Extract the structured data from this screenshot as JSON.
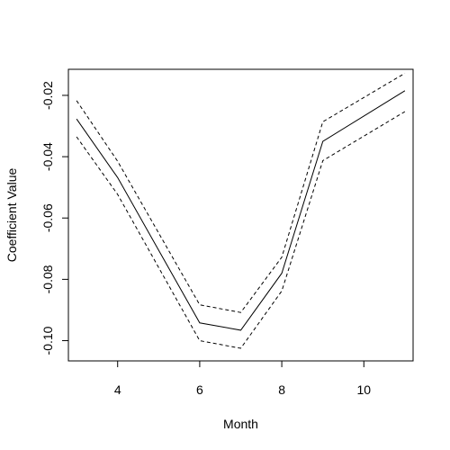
{
  "chart_data": {
    "type": "line",
    "title": "",
    "xlabel": "Month",
    "ylabel": "Coefficient Value",
    "xlim": [
      2.8,
      11.2
    ],
    "ylim": [
      -0.1066,
      -0.0115
    ],
    "x_ticks": [
      4,
      6,
      8,
      10
    ],
    "x_tick_labels": [
      "4",
      "6",
      "8",
      "10"
    ],
    "y_ticks": [
      -0.1,
      -0.08,
      -0.06,
      -0.04,
      -0.02
    ],
    "y_tick_labels": [
      "-0.10",
      "-0.08",
      "-0.06",
      "-0.04",
      "-0.02"
    ],
    "grid": false,
    "legend": "none",
    "x": [
      3,
      4,
      6,
      7,
      8,
      9,
      11
    ],
    "series": [
      {
        "style": "solid",
        "values": [
          -0.0277,
          -0.0468,
          -0.0942,
          -0.0966,
          -0.078,
          -0.035,
          -0.0185
        ]
      },
      {
        "style": "dashed",
        "values": [
          -0.0217,
          -0.0415,
          -0.0883,
          -0.0908,
          -0.0728,
          -0.0286,
          -0.0128
        ]
      },
      {
        "style": "dashed",
        "values": [
          -0.0335,
          -0.0523,
          -0.1,
          -0.1025,
          -0.0838,
          -0.0413,
          -0.0253
        ]
      }
    ]
  }
}
